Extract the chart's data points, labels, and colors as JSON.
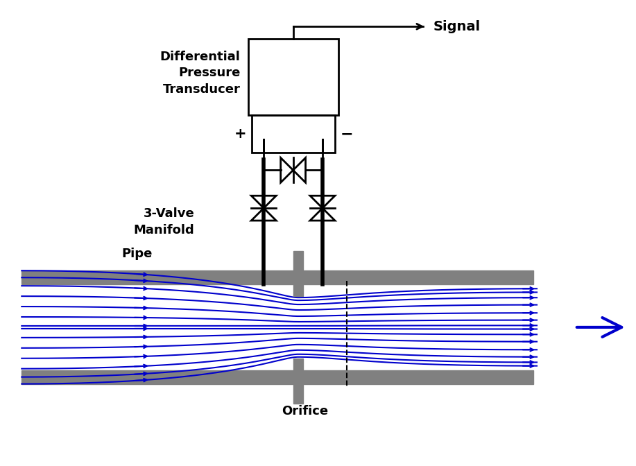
{
  "bg_color": "#ffffff",
  "pipe_color": "#808080",
  "black": "#000000",
  "blue": "#0000cc",
  "fig_w": 9.17,
  "fig_h": 6.72,
  "label_signal": "Signal",
  "label_dpt": "Differential\nPressure\nTransducer",
  "label_manifold": "3-Valve\nManifold",
  "label_pipe": "Pipe",
  "label_orifice": "Orifice"
}
